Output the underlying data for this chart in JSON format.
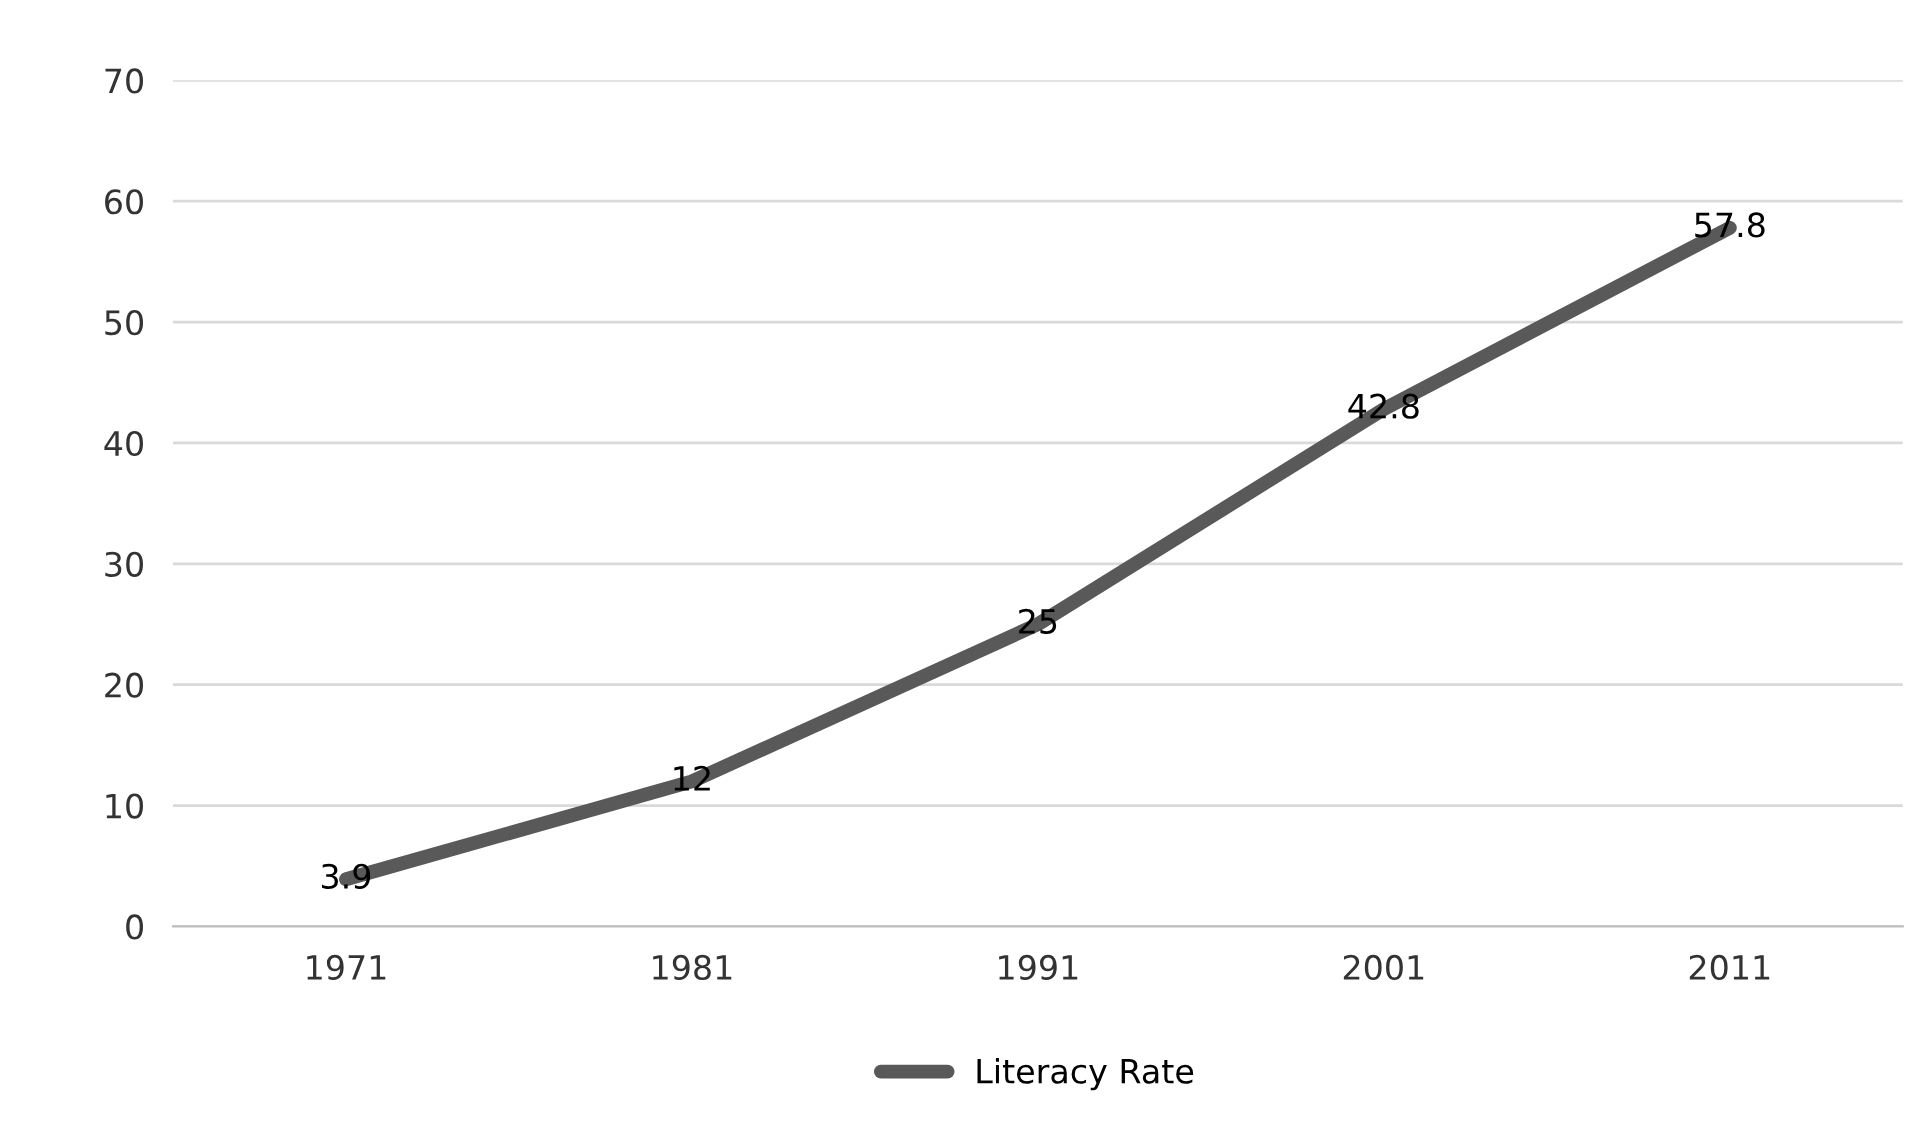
{
  "chart_data": {
    "type": "line",
    "categories": [
      "1971",
      "1981",
      "1991",
      "2001",
      "2011"
    ],
    "series": [
      {
        "name": "Literacy Rate",
        "color": "#595959",
        "values": [
          3.9,
          12,
          25,
          42.8,
          57.8
        ]
      }
    ],
    "ylim": [
      0,
      70
    ],
    "yticks": [
      0,
      10,
      20,
      30,
      40,
      50,
      60,
      70
    ],
    "grid": "y",
    "legend": "bottom",
    "data_labels": true,
    "marker": "none",
    "line_style": "solid"
  }
}
